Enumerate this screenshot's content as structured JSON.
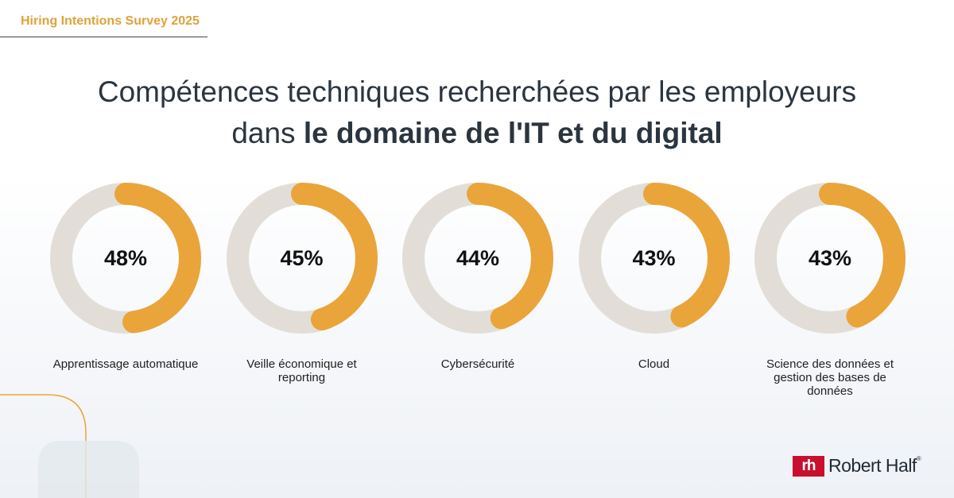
{
  "survey": {
    "tag": "Hiring Intentions Survey 2025"
  },
  "headline": {
    "line1": "Compétences techniques recherchées par les employeurs",
    "line2_prefix": "dans ",
    "line2_bold": "le domaine de l'IT et du digital"
  },
  "chart_data": {
    "type": "donut",
    "title": "Compétences techniques recherchées par les employeurs dans le domaine de l'IT et du digital",
    "unit": "%",
    "items": [
      {
        "label": "Apprentissage automatique",
        "value": 48,
        "display": "48%"
      },
      {
        "label": "Veille économique et reporting",
        "value": 45,
        "display": "45%"
      },
      {
        "label": "Cybersécurité",
        "value": 44,
        "display": "44%"
      },
      {
        "label": "Cloud",
        "value": 43,
        "display": "43%"
      },
      {
        "label": "Science des données et gestion des bases de données",
        "value": 43,
        "display": "43%"
      }
    ],
    "colors": {
      "filled": "#e9a53a",
      "track": "#e2ded7"
    }
  },
  "brand": {
    "mark": "rh",
    "name": "Robert Half",
    "reg": "®"
  }
}
